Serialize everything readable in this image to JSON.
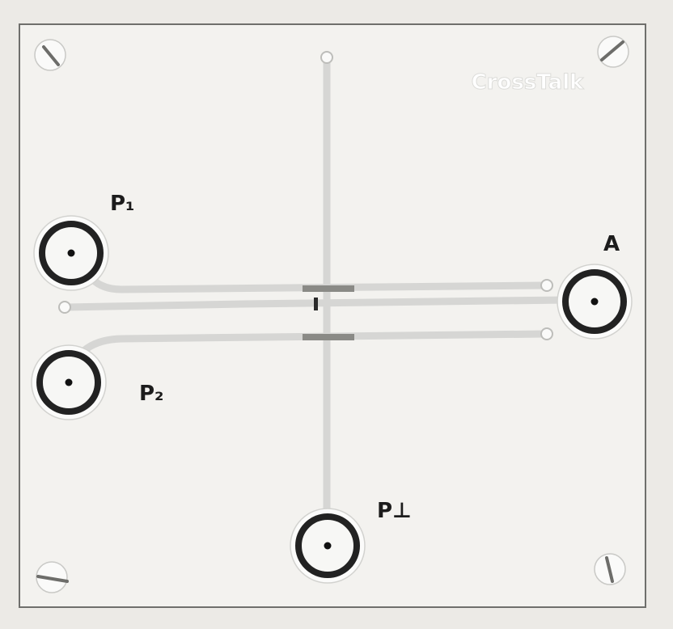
{
  "board": {
    "brand": "CrossTalk",
    "connectors": {
      "p1": "P₁",
      "p2": "P₂",
      "a": "A",
      "p_perp": "P⊥"
    },
    "center_label": "I"
  },
  "colors": {
    "background": "#eceae6",
    "board": "#f3f2ef",
    "trace": "#d6d6d4",
    "connector_ring": "#222222",
    "pad": "#8a8a86"
  }
}
